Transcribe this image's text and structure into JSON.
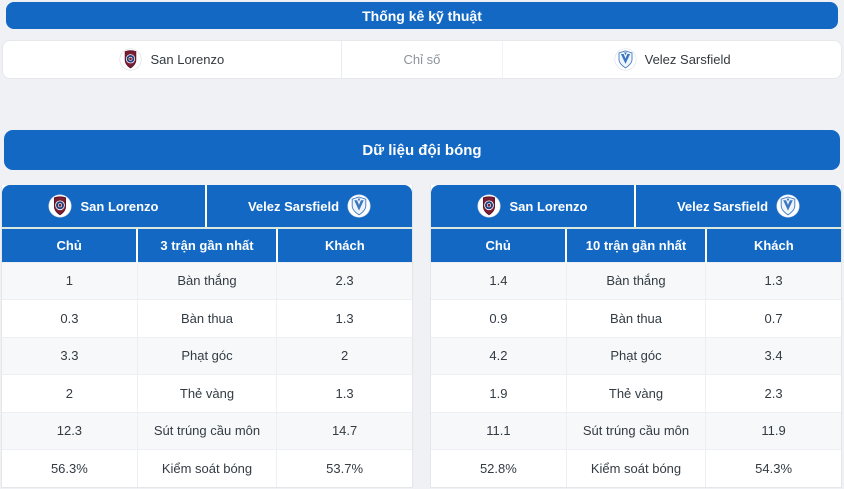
{
  "page": {
    "accent_color": "#1268c3",
    "background_color": "#f0f1f5",
    "stripe_color": "#f7f8f9"
  },
  "icons": {
    "home_crest": "san-lorenzo-crest",
    "away_crest": "velez-sarsfield-crest"
  },
  "technical_stats": {
    "title": "Thống kê kỹ thuật",
    "home_team": "San Lorenzo",
    "metric_label": "Chỉ số",
    "away_team": "Velez Sarsfield"
  },
  "team_data": {
    "title": "Dữ liệu đội bóng",
    "tables": [
      {
        "home_team": "San Lorenzo",
        "away_team": "Velez Sarsfield",
        "columns": [
          "Chủ",
          "3 trận gần nhất",
          "Khách"
        ],
        "rows": [
          [
            "1",
            "Bàn thắng",
            "2.3"
          ],
          [
            "0.3",
            "Bàn thua",
            "1.3"
          ],
          [
            "3.3",
            "Phạt góc",
            "2"
          ],
          [
            "2",
            "Thẻ vàng",
            "1.3"
          ],
          [
            "12.3",
            "Sút trúng cầu môn",
            "14.7"
          ],
          [
            "56.3%",
            "Kiểm soát bóng",
            "53.7%"
          ]
        ]
      },
      {
        "home_team": "San Lorenzo",
        "away_team": "Velez Sarsfield",
        "columns": [
          "Chủ",
          "10 trận gần nhất",
          "Khách"
        ],
        "rows": [
          [
            "1.4",
            "Bàn thắng",
            "1.3"
          ],
          [
            "0.9",
            "Bàn thua",
            "0.7"
          ],
          [
            "4.2",
            "Phạt góc",
            "3.4"
          ],
          [
            "1.9",
            "Thẻ vàng",
            "2.3"
          ],
          [
            "11.1",
            "Sút trúng cầu môn",
            "11.9"
          ],
          [
            "52.8%",
            "Kiểm soát bóng",
            "54.3%"
          ]
        ]
      }
    ]
  }
}
